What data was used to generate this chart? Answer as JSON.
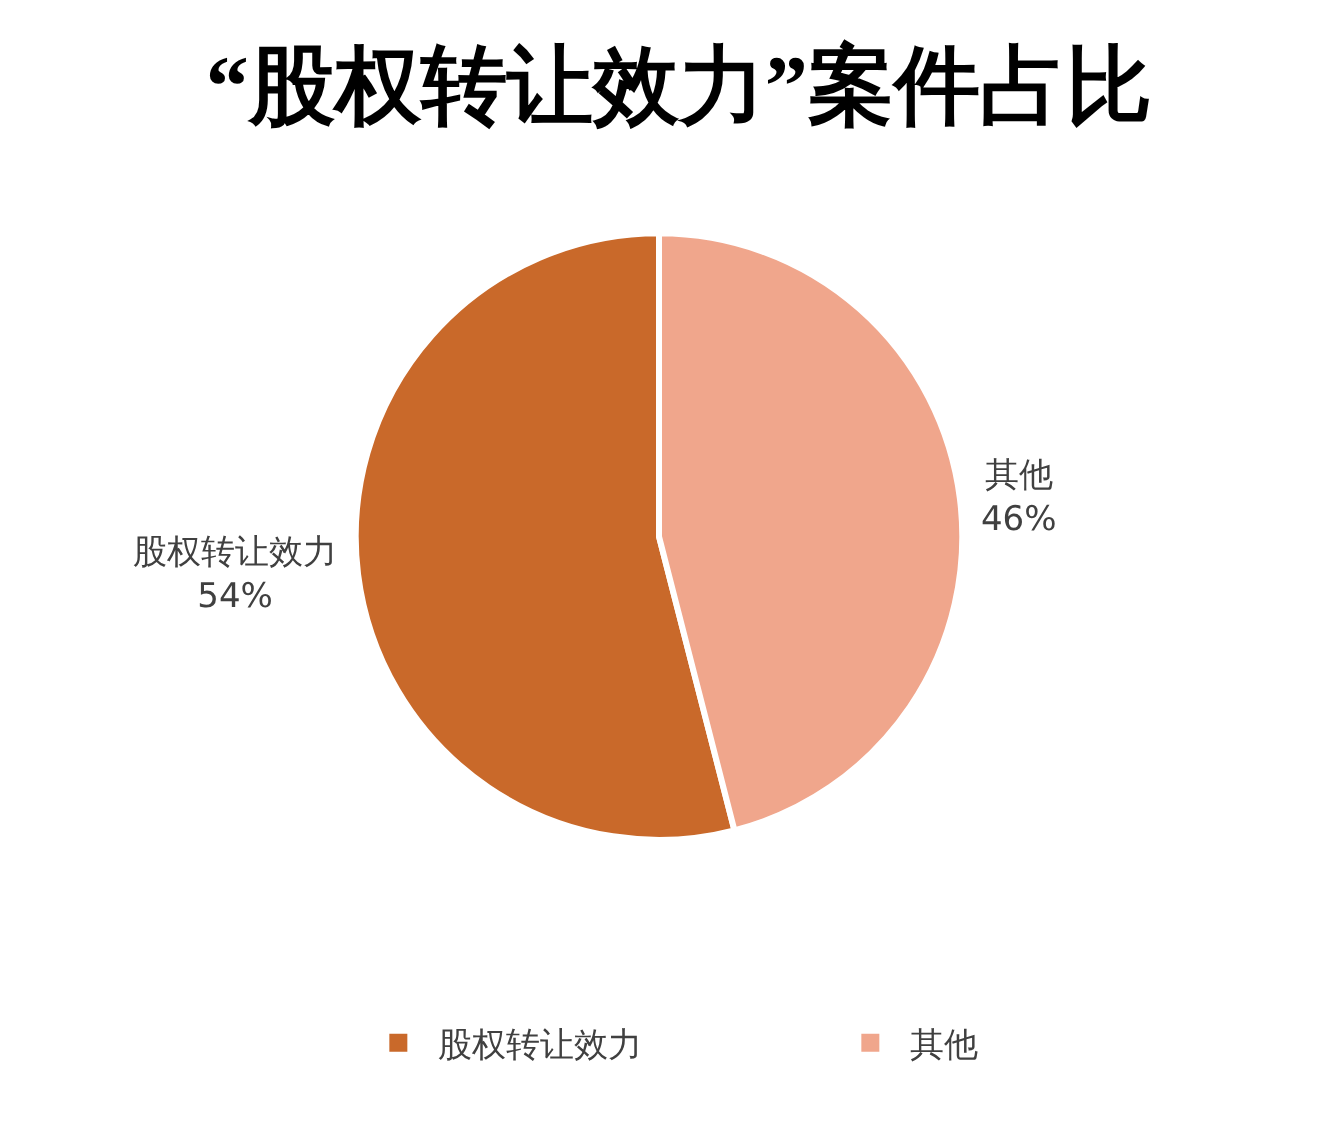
{
  "chart_data": {
    "type": "pie",
    "title": "“股权转让效力”案件占比",
    "categories": [
      "股权转让效力",
      "其他"
    ],
    "values": [
      54,
      46
    ],
    "colors": [
      "#c9692a",
      "#f0a68c"
    ],
    "value_labels": [
      "54%",
      "46%"
    ],
    "legend": "bottom"
  }
}
